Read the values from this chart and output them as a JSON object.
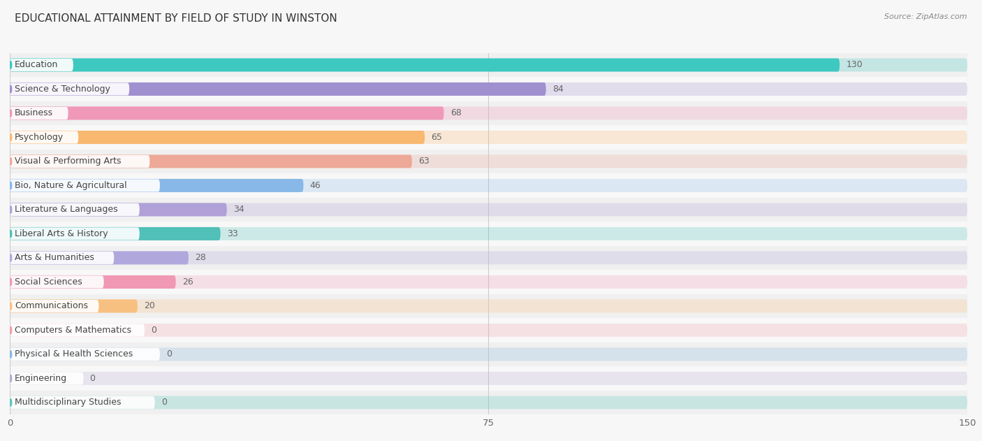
{
  "title": "EDUCATIONAL ATTAINMENT BY FIELD OF STUDY IN WINSTON",
  "source": "Source: ZipAtlas.com",
  "categories": [
    "Education",
    "Science & Technology",
    "Business",
    "Psychology",
    "Visual & Performing Arts",
    "Bio, Nature & Agricultural",
    "Literature & Languages",
    "Liberal Arts & History",
    "Arts & Humanities",
    "Social Sciences",
    "Communications",
    "Computers & Mathematics",
    "Physical & Health Sciences",
    "Engineering",
    "Multidisciplinary Studies"
  ],
  "values": [
    130,
    84,
    68,
    65,
    63,
    46,
    34,
    33,
    28,
    26,
    20,
    0,
    0,
    0,
    0
  ],
  "bar_colors": [
    "#3dc8c0",
    "#a090d0",
    "#f098b8",
    "#f8b870",
    "#eda898",
    "#88b8e8",
    "#b0a0d8",
    "#50c0b8",
    "#b0a8dc",
    "#f098b4",
    "#f8c080",
    "#f0a0a8",
    "#88b8e0",
    "#b8aad4",
    "#58c8bc"
  ],
  "dot_colors": [
    "#3dc8c0",
    "#a090d0",
    "#f098b8",
    "#f8b870",
    "#eda898",
    "#88b8e8",
    "#b0a0d8",
    "#50c0b8",
    "#b0a8dc",
    "#f098b4",
    "#f8c080",
    "#f0a0a8",
    "#88b8e0",
    "#b8aad4",
    "#58c8bc"
  ],
  "xlim": [
    0,
    150
  ],
  "xticks": [
    0,
    75,
    150
  ],
  "background_color": "#f7f7f7",
  "bar_background": "#ffffff",
  "row_bg_even": "#f0f0f0",
  "row_bg_odd": "#f8f8f8",
  "title_fontsize": 11,
  "label_fontsize": 9,
  "value_fontsize": 9
}
